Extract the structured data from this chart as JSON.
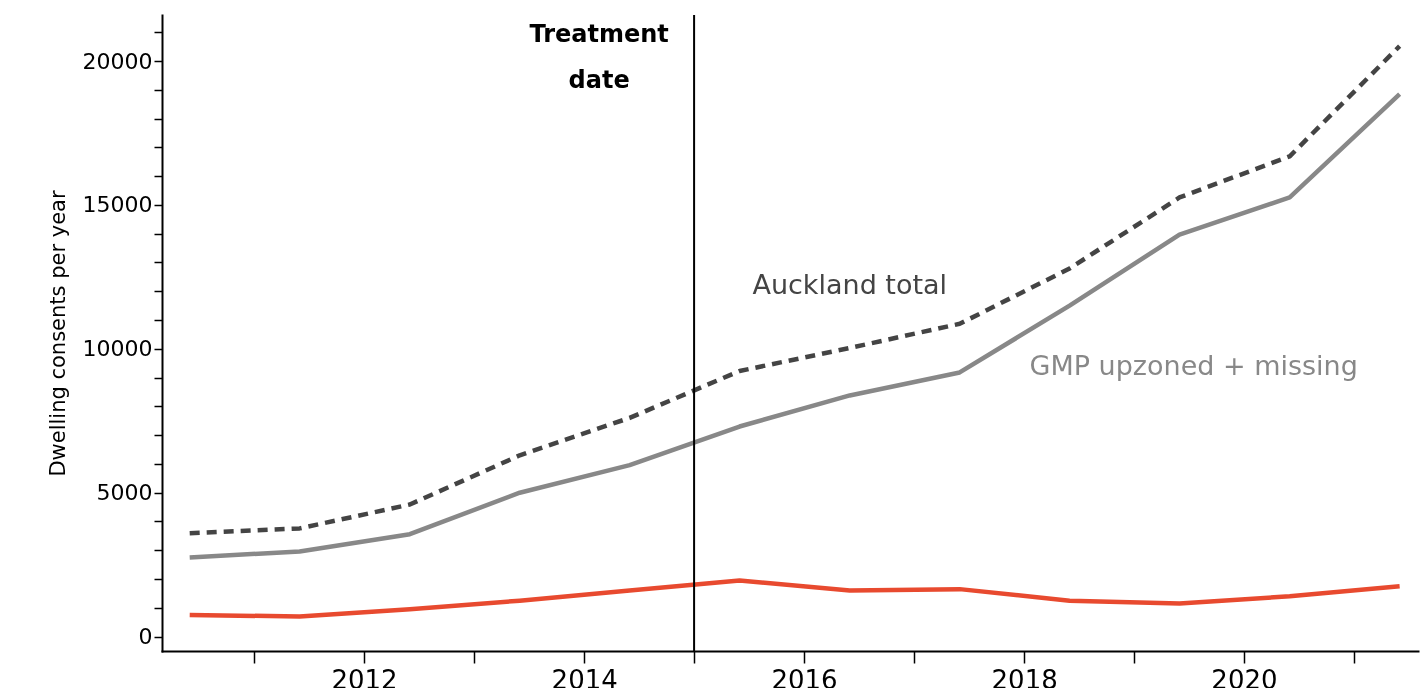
{
  "chart_data": {
    "type": "line",
    "ylabel": "Dwelling consents per year",
    "x": [
      "2010-06",
      "2011-06",
      "2012-06",
      "2013-06",
      "2014-06",
      "2015-06",
      "2016-06",
      "2017-06",
      "2018-06",
      "2019-06",
      "2020-06",
      "2021-06"
    ],
    "series": [
      {
        "name": "Auckland total",
        "color": "#444444",
        "line_style": "dashed",
        "values": [
          3590,
          3760,
          4590,
          6300,
          7600,
          9230,
          10030,
          10870,
          12790,
          15260,
          16690,
          20520
        ]
      },
      {
        "name": "GMP upzoned + missing",
        "color": "#888888",
        "line_style": "solid",
        "values": [
          2750,
          2960,
          3560,
          5000,
          5960,
          7300,
          8380,
          9180,
          11500,
          13970,
          15260,
          18850
        ]
      },
      {
        "color": "#e84a2f",
        "line_style": "solid",
        "values": [
          750,
          700,
          950,
          1250,
          1600,
          1950,
          1600,
          1650,
          1250,
          1150,
          1400,
          1750
        ]
      }
    ],
    "xlim": [
      "2010-03",
      "2021-08"
    ],
    "xticks": [
      {
        "value": "2011",
        "label": null
      },
      {
        "value": "2012",
        "label": "2012"
      },
      {
        "value": "2013",
        "label": null
      },
      {
        "value": "2014",
        "label": "2014"
      },
      {
        "value": "2015",
        "label": null
      },
      {
        "value": "2016",
        "label": "2016"
      },
      {
        "value": "2017",
        "label": null
      },
      {
        "value": "2018",
        "label": "2018"
      },
      {
        "value": "2019",
        "label": null
      },
      {
        "value": "2020",
        "label": "2020"
      },
      {
        "value": "2021",
        "label": null
      }
    ],
    "ylim": [
      -500,
      21600
    ],
    "yticks": [
      0,
      {
        "value": 1000,
        "label": null
      },
      {
        "value": 2000,
        "label": null
      },
      {
        "value": 3000,
        "label": null
      },
      {
        "value": 4000,
        "label": null
      },
      5000,
      {
        "value": 6000,
        "label": null
      },
      {
        "value": 7000,
        "label": null
      },
      {
        "value": 8000,
        "label": null
      },
      {
        "value": 9000,
        "label": null
      },
      10000,
      {
        "value": 11000,
        "label": null
      },
      {
        "value": 12000,
        "label": null
      },
      {
        "value": 13000,
        "label": null
      },
      {
        "value": 14000,
        "label": null
      },
      15000,
      {
        "value": 16000,
        "label": null
      },
      {
        "value": 17000,
        "label": null
      },
      {
        "value": 18000,
        "label": null
      },
      {
        "value": 19000,
        "label": null
      },
      20000,
      {
        "value": 21000,
        "label": null
      }
    ],
    "ref_lines": [
      {
        "axis": "x",
        "value": "2015",
        "label": "Treatment date",
        "color": "#000000"
      }
    ],
    "grid": false,
    "marker": "none"
  }
}
